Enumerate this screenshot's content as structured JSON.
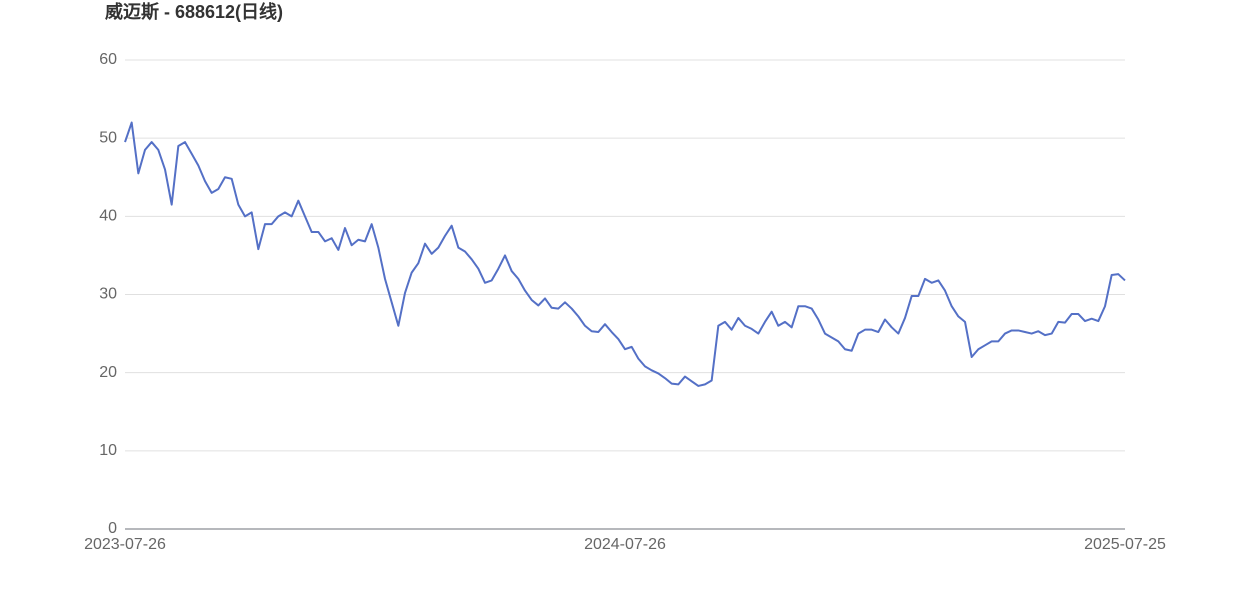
{
  "chart_data": {
    "type": "line",
    "title": "威迈斯 - 688612(日线)",
    "categories": [
      "2023-07-26",
      null,
      null,
      null,
      null,
      null,
      null,
      null,
      null,
      null,
      null,
      null,
      null,
      null,
      null,
      null,
      null,
      null,
      null,
      null,
      null,
      null,
      null,
      null,
      null,
      null,
      null,
      null,
      null,
      null,
      null,
      null,
      null,
      null,
      null,
      null,
      null,
      null,
      null,
      null,
      null,
      null,
      null,
      null,
      null,
      null,
      null,
      null,
      null,
      null,
      null,
      null,
      null,
      null,
      null,
      null,
      null,
      null,
      null,
      null,
      null,
      null,
      null,
      null,
      null,
      null,
      null,
      null,
      null,
      null,
      null,
      null,
      null,
      null,
      null,
      "2024-07-26",
      null,
      null,
      null,
      null,
      null,
      null,
      null,
      null,
      null,
      null,
      null,
      null,
      null,
      null,
      null,
      null,
      null,
      null,
      null,
      null,
      null,
      null,
      null,
      null,
      null,
      null,
      null,
      null,
      null,
      null,
      null,
      null,
      null,
      null,
      null,
      null,
      null,
      null,
      null,
      null,
      null,
      null,
      null,
      null,
      null,
      null,
      null,
      null,
      null,
      null,
      null,
      null,
      null,
      null,
      null,
      null,
      null,
      null,
      null,
      null,
      null,
      null,
      null,
      null,
      null,
      null,
      null,
      null,
      null,
      null,
      null,
      null,
      null,
      null,
      "2025-07-25"
    ],
    "series": [
      {
        "color": "#5470c6",
        "values": [
          49.5,
          52,
          45.5,
          48.5,
          49.5,
          48.5,
          46,
          41.5,
          49,
          49.5,
          48,
          46.5,
          44.5,
          43,
          43.5,
          45,
          44.8,
          41.5,
          40,
          40.5,
          35.8,
          39,
          39,
          40,
          40.5,
          40,
          42,
          40,
          38,
          38,
          36.8,
          37.2,
          35.7,
          38.5,
          36.3,
          37,
          36.8,
          39,
          36,
          32,
          29,
          26,
          30.2,
          32.8,
          34,
          36.5,
          35.2,
          36,
          37.5,
          38.8,
          36,
          35.5,
          34.5,
          33.3,
          31.5,
          31.8,
          33.3,
          35,
          33,
          32,
          30.5,
          29.3,
          28.6,
          29.5,
          28.3,
          28.2,
          29,
          28.2,
          27.2,
          26,
          25.3,
          25.2,
          26.2,
          25.2,
          24.3,
          23,
          23.3,
          21.8,
          20.8,
          20.3,
          19.9,
          19.3,
          18.6,
          18.5,
          19.5,
          18.9,
          18.3,
          18.5,
          19,
          26,
          26.5,
          25.5,
          27,
          26,
          25.6,
          25,
          26.5,
          27.8,
          26,
          26.5,
          25.8,
          28.5,
          28.5,
          28.2,
          26.8,
          25,
          24.5,
          24,
          23,
          22.8,
          25,
          25.5,
          25.5,
          25.2,
          26.8,
          25.8,
          25,
          27,
          29.8,
          29.8,
          32,
          31.5,
          31.8,
          30.5,
          28.5,
          27.2,
          26.5,
          22,
          23,
          23.5,
          24,
          24,
          25,
          25.4,
          25.4,
          25.2,
          25,
          25.3,
          24.8,
          25,
          26.5,
          26.4,
          27.5,
          27.5,
          26.6,
          26.9,
          26.6,
          28.5,
          32.5,
          32.6,
          31.8
        ]
      }
    ],
    "ylim": [
      0,
      60
    ],
    "yticks": [
      0,
      10,
      20,
      30,
      40,
      50,
      60
    ],
    "grid": true
  }
}
